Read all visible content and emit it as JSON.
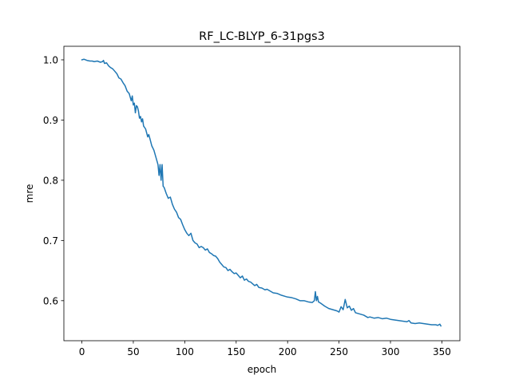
{
  "chart_data": {
    "type": "line",
    "title": "RF_LC-BLYP_6-31pgs3",
    "xlabel": "epoch",
    "ylabel": "mre",
    "xlim": [
      -17.5,
      367.5
    ],
    "ylim": [
      0.5335,
      1.0225
    ],
    "xticks": [
      0,
      50,
      100,
      150,
      200,
      250,
      300,
      350
    ],
    "yticks": [
      0.6,
      0.7,
      0.8,
      0.9,
      1.0
    ],
    "xtick_labels": [
      "0",
      "50",
      "100",
      "150",
      "200",
      "250",
      "300",
      "350"
    ],
    "ytick_labels": [
      "0.6",
      "0.7",
      "0.8",
      "0.9",
      "1.0"
    ],
    "grid": false,
    "line_color": "#1f77b4",
    "series": [
      {
        "name": "",
        "x": [
          0,
          2,
          5,
          8,
          10,
          12,
          15,
          18,
          20,
          21,
          22,
          24,
          26,
          28,
          30,
          32,
          34,
          36,
          38,
          40,
          42,
          44,
          46,
          48,
          49,
          50,
          51,
          52,
          53,
          54,
          55,
          56,
          57,
          58,
          59,
          60,
          62,
          64,
          65,
          66,
          68,
          70,
          72,
          74,
          75,
          76,
          77,
          78,
          79,
          80,
          82,
          84,
          86,
          88,
          90,
          92,
          94,
          96,
          98,
          100,
          102,
          104,
          106,
          108,
          110,
          112,
          114,
          116,
          118,
          120,
          122,
          124,
          126,
          128,
          130,
          132,
          134,
          136,
          138,
          140,
          142,
          144,
          146,
          148,
          150,
          152,
          154,
          156,
          158,
          160,
          162,
          164,
          166,
          168,
          170,
          172,
          175,
          178,
          180,
          183,
          186,
          190,
          194,
          198,
          200,
          204,
          208,
          212,
          216,
          220,
          224,
          226,
          227,
          228,
          229,
          230,
          232,
          236,
          240,
          244,
          248,
          250,
          252,
          254,
          256,
          258,
          260,
          262,
          264,
          266,
          270,
          274,
          278,
          280,
          284,
          288,
          292,
          296,
          300,
          304,
          308,
          312,
          316,
          318,
          320,
          324,
          328,
          332,
          336,
          340,
          344,
          346,
          348,
          349
        ],
        "values": [
          1.0,
          1.001,
          0.999,
          0.998,
          0.998,
          0.997,
          0.998,
          0.996,
          0.997,
          0.999,
          0.994,
          0.995,
          0.99,
          0.987,
          0.985,
          0.981,
          0.977,
          0.97,
          0.968,
          0.962,
          0.957,
          0.948,
          0.944,
          0.932,
          0.94,
          0.925,
          0.928,
          0.912,
          0.924,
          0.922,
          0.915,
          0.903,
          0.906,
          0.897,
          0.902,
          0.89,
          0.885,
          0.872,
          0.876,
          0.87,
          0.857,
          0.85,
          0.838,
          0.826,
          0.808,
          0.826,
          0.8,
          0.826,
          0.79,
          0.788,
          0.778,
          0.77,
          0.772,
          0.76,
          0.752,
          0.747,
          0.738,
          0.735,
          0.726,
          0.718,
          0.712,
          0.708,
          0.712,
          0.7,
          0.696,
          0.694,
          0.688,
          0.69,
          0.688,
          0.684,
          0.686,
          0.68,
          0.678,
          0.675,
          0.674,
          0.67,
          0.664,
          0.66,
          0.656,
          0.655,
          0.65,
          0.652,
          0.648,
          0.645,
          0.646,
          0.642,
          0.638,
          0.641,
          0.634,
          0.636,
          0.632,
          0.631,
          0.628,
          0.625,
          0.627,
          0.622,
          0.621,
          0.618,
          0.619,
          0.616,
          0.613,
          0.612,
          0.609,
          0.607,
          0.606,
          0.605,
          0.603,
          0.6,
          0.6,
          0.598,
          0.597,
          0.6,
          0.615,
          0.6,
          0.607,
          0.598,
          0.596,
          0.591,
          0.587,
          0.585,
          0.583,
          0.581,
          0.59,
          0.585,
          0.602,
          0.588,
          0.591,
          0.584,
          0.587,
          0.58,
          0.578,
          0.576,
          0.572,
          0.573,
          0.571,
          0.572,
          0.57,
          0.571,
          0.569,
          0.568,
          0.567,
          0.566,
          0.565,
          0.567,
          0.563,
          0.562,
          0.563,
          0.562,
          0.561,
          0.56,
          0.56,
          0.559,
          0.561,
          0.558
        ]
      }
    ]
  }
}
